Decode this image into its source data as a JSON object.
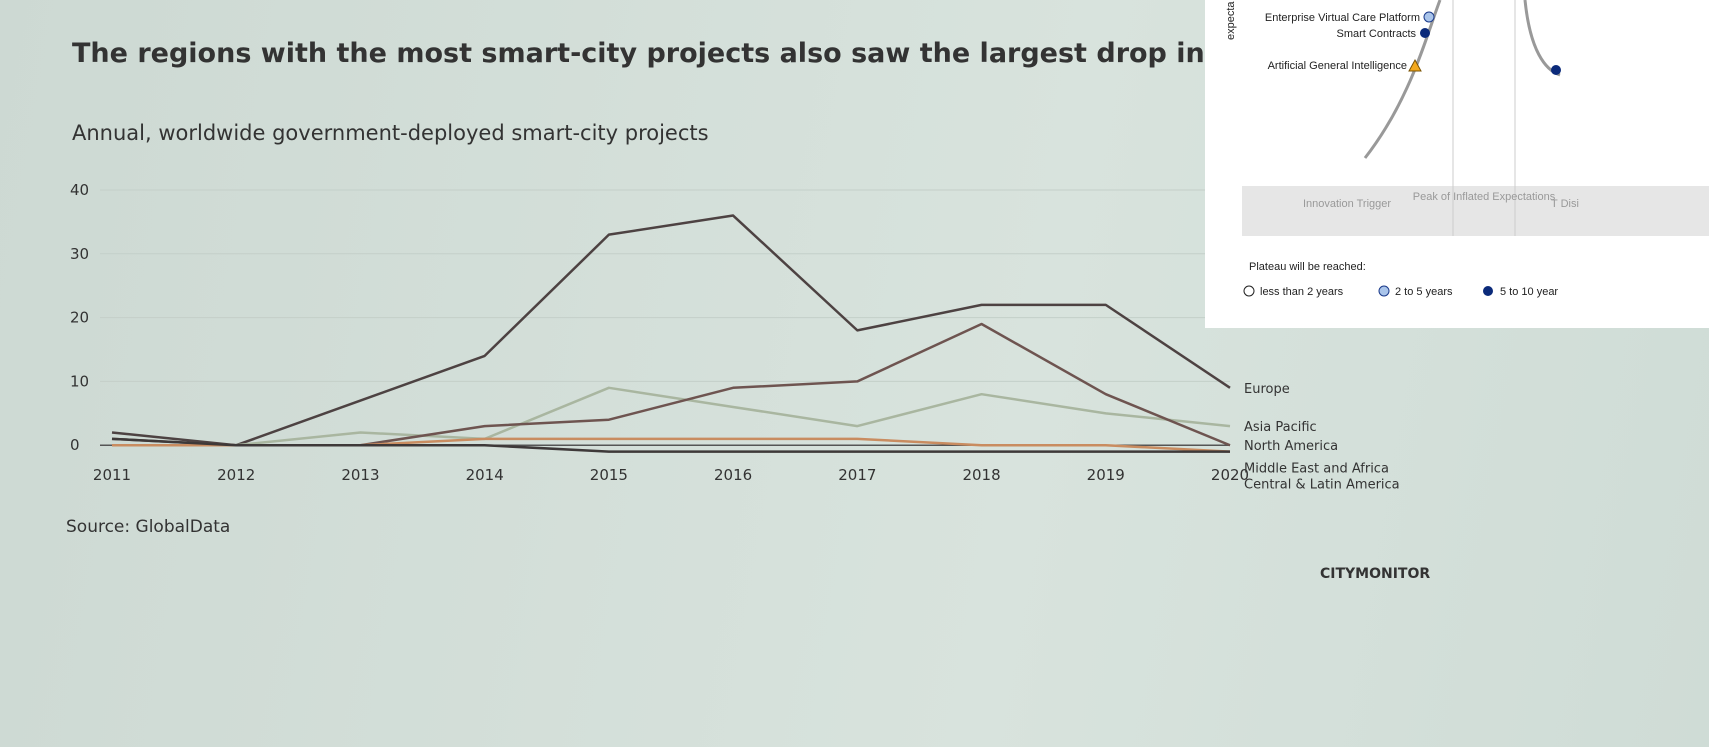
{
  "chart_data": {
    "type": "line",
    "title": "The regions with the most smart-city projects also saw the largest drop in deployments",
    "subtitle": "Annual, worldwide government-deployed smart-city projects",
    "source": "Source: GlobalData",
    "brand": "CITYMONITOR",
    "categories": [
      "2011",
      "2012",
      "2013",
      "2014",
      "2015",
      "2016",
      "2017",
      "2018",
      "2019",
      "2020"
    ],
    "series": [
      {
        "name": "Europe",
        "color": "#4d4242",
        "values": [
          2,
          0,
          7,
          14,
          33,
          36,
          18,
          22,
          22,
          9
        ]
      },
      {
        "name": "Asia Pacific",
        "color": "#a9b6a0",
        "values": [
          0,
          0,
          2,
          1,
          9,
          6,
          3,
          8,
          5,
          3
        ]
      },
      {
        "name": "North America",
        "color": "#6e5450",
        "values": [
          1,
          0,
          0,
          3,
          4,
          9,
          10,
          19,
          8,
          0
        ]
      },
      {
        "name": "Middle East and Africa",
        "color": "#c98c60",
        "values": [
          0,
          0,
          0,
          1,
          1,
          1,
          1,
          0,
          0,
          -1
        ]
      },
      {
        "name": "Central & Latin America",
        "color": "#3e3939",
        "values": [
          1,
          0,
          0,
          0,
          -1,
          -1,
          -1,
          -1,
          -1,
          -1
        ]
      }
    ],
    "ylim": [
      -2,
      40
    ],
    "yticks": [
      0,
      10,
      20,
      30,
      40
    ],
    "grid": true
  },
  "inset": {
    "axis_label": "expecta",
    "points": [
      "Enterprise Virtual Care Platform",
      "Smart Contracts",
      "Artificial General Intelligence"
    ],
    "phases": [
      "Innovation Trigger",
      "Peak of Inflated Expectations",
      "T Disi"
    ],
    "legend_title": "Plateau will be reached:",
    "legend": [
      "less than 2 years",
      "2 to 5 years",
      "5 to 10 year"
    ]
  }
}
